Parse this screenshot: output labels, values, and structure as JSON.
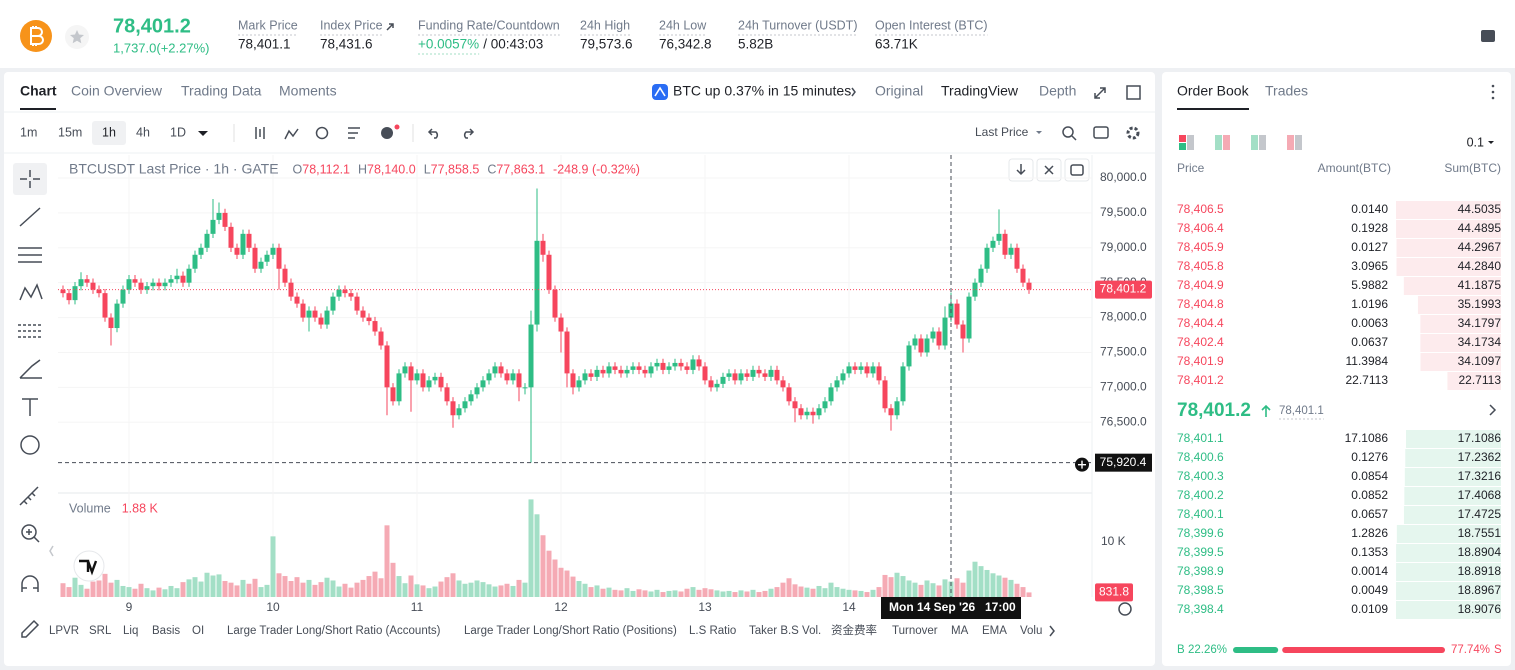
{
  "header": {
    "price": "78,401.2",
    "change": "1,737.0(+2.27%)",
    "stats": [
      {
        "label": "Mark Price",
        "value": "78,401.1"
      },
      {
        "label": "Index Price",
        "value": "78,431.6"
      },
      {
        "label": "Funding Rate/Countdown",
        "value": "+0.0057%",
        "extra": "/ 00:43:03"
      },
      {
        "label": "24h High",
        "value": "79,573.6"
      },
      {
        "label": "24h Low",
        "value": "76,342.8"
      },
      {
        "label": "24h Turnover (USDT)",
        "value": "5.82B"
      },
      {
        "label": "Open Interest (BTC)",
        "value": "63.71K"
      }
    ]
  },
  "tabs": [
    "Chart",
    "Coin Overview",
    "Trading Data",
    "Moments"
  ],
  "alert": "BTC up 0.37% in 15 minutes",
  "views": [
    "Original",
    "TradingView",
    "Depth"
  ],
  "intervals": [
    "1m",
    "15m",
    "1h",
    "4h",
    "1D"
  ],
  "price_type": "Last Price",
  "chart_data": {
    "type": "candlestick",
    "title": "BTCUSDT Last Price · 1h · GATE",
    "legend": [
      {
        "key": "O",
        "value": "78,112.1"
      },
      {
        "key": "H",
        "value": "78,140.0"
      },
      {
        "key": "L",
        "value": "77,858.5"
      },
      {
        "key": "C",
        "value": "77,863.1"
      }
    ],
    "legend_change": "-248.9 (-0.32%)",
    "up_color": "#2ebd85",
    "down_color": "#f6465d",
    "volume_up_color": "#a3dfc6",
    "volume_down_color": "#f5aab4",
    "ylim": [
      75500,
      80330
    ],
    "yticks": [
      {
        "value": 76500,
        "label": "76,500.0"
      },
      {
        "value": 77000,
        "label": "77,000.0"
      },
      {
        "value": 77500,
        "label": "77,500.0"
      },
      {
        "value": 78000,
        "label": "78,000.0"
      },
      {
        "value": 78500,
        "label": "78,500.0"
      },
      {
        "value": 79000,
        "label": "79,000.0"
      },
      {
        "value": 79500,
        "label": "79,500.0"
      },
      {
        "value": 80000,
        "label": "80,000.0"
      }
    ],
    "xticks": [
      {
        "value": 11,
        "label": "9"
      },
      {
        "value": 35,
        "label": "10"
      },
      {
        "value": 59,
        "label": "11"
      },
      {
        "value": 83,
        "label": "12"
      },
      {
        "value": 107,
        "label": "13"
      },
      {
        "value": 131,
        "label": "14"
      }
    ],
    "candles": [
      [
        78400,
        78460,
        78290,
        78350
      ],
      [
        78350,
        78410,
        78190,
        78250
      ],
      [
        78250,
        78510,
        78190,
        78450
      ],
      [
        78450,
        78650,
        78390,
        78550
      ],
      [
        78550,
        78610,
        78440,
        78500
      ],
      [
        78500,
        78560,
        78340,
        78400
      ],
      [
        78400,
        78460,
        78290,
        78350
      ],
      [
        78350,
        78410,
        77940,
        78000
      ],
      [
        78000,
        78060,
        77600,
        77850
      ],
      [
        77850,
        78260,
        77790,
        78200
      ],
      [
        78200,
        78460,
        78140,
        78400
      ],
      [
        78400,
        78610,
        78340,
        78550
      ],
      [
        78550,
        78610,
        78440,
        78500
      ],
      [
        78500,
        78560,
        78340,
        78400
      ],
      [
        78400,
        78510,
        78340,
        78450
      ],
      [
        78450,
        78560,
        78390,
        78500
      ],
      [
        78500,
        78560,
        78390,
        78450
      ],
      [
        78450,
        78560,
        78390,
        78500
      ],
      [
        78500,
        78610,
        78440,
        78550
      ],
      [
        78550,
        78700,
        78490,
        78600
      ],
      [
        78600,
        78660,
        78440,
        78500
      ],
      [
        78500,
        78760,
        78440,
        78700
      ],
      [
        78700,
        78960,
        78640,
        78900
      ],
      [
        78900,
        79060,
        78840,
        79000
      ],
      [
        79000,
        79260,
        78940,
        79200
      ],
      [
        79200,
        79700,
        79140,
        79400
      ],
      [
        79400,
        79650,
        79340,
        79500
      ],
      [
        79500,
        79560,
        79240,
        79300
      ],
      [
        79300,
        79360,
        78940,
        79000
      ],
      [
        79000,
        79060,
        78840,
        78900
      ],
      [
        78900,
        79260,
        78840,
        79200
      ],
      [
        79200,
        79260,
        78940,
        79000
      ],
      [
        79000,
        79060,
        78640,
        78700
      ],
      [
        78700,
        78860,
        78640,
        78800
      ],
      [
        78800,
        78960,
        78740,
        78900
      ],
      [
        78900,
        79060,
        78840,
        79000
      ],
      [
        79000,
        79060,
        78400,
        78700
      ],
      [
        78700,
        78760,
        78440,
        78500
      ],
      [
        78500,
        78560,
        78240,
        78300
      ],
      [
        78300,
        78360,
        78140,
        78200
      ],
      [
        78200,
        78260,
        77940,
        78000
      ],
      [
        78000,
        78160,
        77800,
        78100
      ],
      [
        78100,
        78160,
        77940,
        78000
      ],
      [
        78000,
        78060,
        77840,
        77900
      ],
      [
        77900,
        78160,
        77840,
        78100
      ],
      [
        78100,
        78360,
        78040,
        78300
      ],
      [
        78300,
        78460,
        78240,
        78400
      ],
      [
        78400,
        78460,
        78290,
        78350
      ],
      [
        78350,
        78410,
        78240,
        78300
      ],
      [
        78300,
        78360,
        78040,
        78100
      ],
      [
        78100,
        78160,
        77940,
        78000
      ],
      [
        78000,
        78060,
        77890,
        77950
      ],
      [
        77950,
        78010,
        77740,
        77800
      ],
      [
        77800,
        77860,
        77540,
        77600
      ],
      [
        77600,
        77660,
        76600,
        77000
      ],
      [
        77000,
        77060,
        76740,
        76800
      ],
      [
        76800,
        77260,
        76740,
        77200
      ],
      [
        77200,
        77360,
        77140,
        77300
      ],
      [
        77300,
        77360,
        76650,
        77100
      ],
      [
        77100,
        77260,
        77040,
        77200
      ],
      [
        77200,
        77260,
        76940,
        77000
      ],
      [
        77000,
        77160,
        76940,
        77100
      ],
      [
        77100,
        77210,
        77040,
        77150
      ],
      [
        77150,
        77210,
        76940,
        77000
      ],
      [
        77000,
        77060,
        76740,
        76800
      ],
      [
        76800,
        76860,
        76420,
        76600
      ],
      [
        76600,
        76760,
        76540,
        76700
      ],
      [
        76700,
        76860,
        76640,
        76800
      ],
      [
        76800,
        76960,
        76740,
        76900
      ],
      [
        76900,
        77060,
        76840,
        77000
      ],
      [
        77000,
        77160,
        76940,
        77100
      ],
      [
        77100,
        77260,
        77040,
        77200
      ],
      [
        77200,
        77360,
        77140,
        77300
      ],
      [
        77300,
        77360,
        77140,
        77200
      ],
      [
        77200,
        77260,
        77040,
        77100
      ],
      [
        77100,
        77260,
        77040,
        77200
      ],
      [
        77200,
        77260,
        76800,
        77000
      ],
      [
        77000,
        77060,
        76900,
        77000
      ],
      [
        77000,
        78100,
        75920.4,
        77900
      ],
      [
        77900,
        79850,
        77800,
        79100
      ],
      [
        79100,
        79200,
        78800,
        78900
      ],
      [
        78900,
        78960,
        78340,
        78400
      ],
      [
        78400,
        78460,
        77940,
        78000
      ],
      [
        78000,
        78060,
        77500,
        77800
      ],
      [
        77800,
        77860,
        77000,
        77200
      ],
      [
        77200,
        77260,
        76900,
        77000
      ],
      [
        77000,
        77160,
        76940,
        77100
      ],
      [
        77100,
        77260,
        77040,
        77200
      ],
      [
        77200,
        77260,
        77090,
        77150
      ],
      [
        77150,
        77310,
        77090,
        77250
      ],
      [
        77250,
        77310,
        77140,
        77200
      ],
      [
        77200,
        77360,
        77140,
        77300
      ],
      [
        77300,
        77360,
        77190,
        77250
      ],
      [
        77250,
        77310,
        77140,
        77200
      ],
      [
        77200,
        77310,
        77140,
        77250
      ],
      [
        77250,
        77360,
        77190,
        77300
      ],
      [
        77300,
        77360,
        77190,
        77250
      ],
      [
        77250,
        77310,
        77140,
        77200
      ],
      [
        77200,
        77360,
        77140,
        77300
      ],
      [
        77300,
        77410,
        77240,
        77350
      ],
      [
        77350,
        77410,
        77190,
        77250
      ],
      [
        77250,
        77360,
        77190,
        77300
      ],
      [
        77300,
        77410,
        77240,
        77350
      ],
      [
        77350,
        77410,
        77240,
        77300
      ],
      [
        77300,
        77360,
        77190,
        77250
      ],
      [
        77250,
        77460,
        77190,
        77400
      ],
      [
        77400,
        77460,
        77240,
        77300
      ],
      [
        77300,
        77360,
        77040,
        77100
      ],
      [
        77100,
        77160,
        76940,
        77000
      ],
      [
        77000,
        77110,
        76940,
        77050
      ],
      [
        77050,
        77210,
        76990,
        77150
      ],
      [
        77150,
        77260,
        77090,
        77200
      ],
      [
        77200,
        77260,
        77040,
        77100
      ],
      [
        77100,
        77260,
        77040,
        77200
      ],
      [
        77200,
        77260,
        77090,
        77150
      ],
      [
        77150,
        77310,
        77090,
        77250
      ],
      [
        77250,
        77310,
        77140,
        77200
      ],
      [
        77200,
        77260,
        77090,
        77150
      ],
      [
        77150,
        77310,
        77090,
        77250
      ],
      [
        77250,
        77310,
        77040,
        77100
      ],
      [
        77100,
        77160,
        76940,
        77000
      ],
      [
        77000,
        77060,
        76740,
        76800
      ],
      [
        76800,
        76860,
        76500,
        76700
      ],
      [
        76700,
        76760,
        76540,
        76600
      ],
      [
        76600,
        76710,
        76540,
        76650
      ],
      [
        76650,
        76710,
        76480,
        76600
      ],
      [
        76600,
        76760,
        76540,
        76700
      ],
      [
        76700,
        76860,
        76640,
        76800
      ],
      [
        76800,
        77060,
        76740,
        77000
      ],
      [
        77000,
        77160,
        76940,
        77100
      ],
      [
        77100,
        77260,
        77040,
        77200
      ],
      [
        77200,
        77360,
        77140,
        77300
      ],
      [
        77300,
        77360,
        77190,
        77250
      ],
      [
        77250,
        77360,
        77190,
        77300
      ],
      [
        77300,
        77360,
        77140,
        77200
      ],
      [
        77200,
        77360,
        77140,
        77300
      ],
      [
        77300,
        77360,
        77040,
        77100
      ],
      [
        77100,
        77160,
        76640,
        76700
      ],
      [
        76700,
        76760,
        76380,
        76600
      ],
      [
        76600,
        76860,
        76540,
        76800
      ],
      [
        76800,
        77360,
        76740,
        77300
      ],
      [
        77300,
        77660,
        77240,
        77600
      ],
      [
        77600,
        77760,
        77540,
        77700
      ],
      [
        77700,
        77760,
        77440,
        77500
      ],
      [
        77500,
        77760,
        77440,
        77700
      ],
      [
        77700,
        77860,
        77640,
        77800
      ],
      [
        77800,
        77860,
        77540,
        77600
      ],
      [
        77600,
        78160,
        77540,
        78000
      ],
      [
        78000,
        78360,
        77940,
        78200
      ],
      [
        78200,
        78260,
        77840,
        77900
      ],
      [
        77900,
        77960,
        77500,
        77700
      ],
      [
        77700,
        78360,
        77640,
        78300
      ],
      [
        78300,
        78560,
        78240,
        78500
      ],
      [
        78500,
        78760,
        78440,
        78700
      ],
      [
        78700,
        79060,
        78640,
        79000
      ],
      [
        79000,
        79160,
        78940,
        79100
      ],
      [
        79100,
        79550,
        79040,
        79200
      ],
      [
        79200,
        79260,
        78840,
        78900
      ],
      [
        78900,
        79060,
        78840,
        79000
      ],
      [
        79000,
        79060,
        78640,
        78700
      ],
      [
        78700,
        78760,
        78440,
        78500
      ],
      [
        78500,
        78560,
        78340,
        78401.2
      ]
    ],
    "last_price": {
      "value": 78401.2,
      "label": "78,401.2"
    },
    "crosshair": {
      "value": 75920.4,
      "label": "75,920.4",
      "candle": 148,
      "date": "Mon 14 Sep '26",
      "time": "17:00"
    },
    "volume_title": "Volume",
    "volume_legend": "1.88 K",
    "volume_ylim": [
      0,
      18500
    ],
    "volume_yticks": [
      {
        "value": 10000,
        "label": "10 K"
      }
    ],
    "volumes": [
      2500,
      1800,
      3500,
      2200,
      1500,
      2800,
      3000,
      4200,
      2600,
      3100,
      2000,
      1800,
      1500,
      2400,
      1600,
      1200,
      1700,
      1400,
      2000,
      1600,
      2700,
      3200,
      3600,
      2800,
      4400,
      3900,
      4100,
      2900,
      2600,
      2100,
      3100,
      2400,
      3300,
      1800,
      2200,
      11000,
      4300,
      3800,
      2900,
      3600,
      2600,
      3100,
      2200,
      2700,
      3500,
      3000,
      1900,
      2400,
      1700,
      2600,
      3100,
      3800,
      4600,
      3400,
      13000,
      6200,
      3800,
      2500,
      3900,
      2300,
      2100,
      1600,
      1900,
      2800,
      3600,
      4300,
      3000,
      2400,
      2600,
      3000,
      2700,
      2300,
      1900,
      2100,
      2400,
      2000,
      3100,
      2600,
      17700,
      15000,
      11200,
      8400,
      6800,
      5300,
      4800,
      3700,
      2900,
      2400,
      1800,
      2100,
      1500,
      1700,
      1300,
      1200,
      1600,
      1100,
      1400,
      1200,
      1000,
      1300,
      900,
      1100,
      1200,
      1000,
      1500,
      1800,
      1300,
      1600,
      1400,
      1200,
      1000,
      1100,
      900,
      1200,
      1000,
      1300,
      900,
      1100,
      1500,
      1800,
      2600,
      3400,
      2300,
      1900,
      1700,
      1500,
      2000,
      1600,
      2600,
      1800,
      1500,
      1300,
      1200,
      1100,
      900,
      1300,
      1800,
      4000,
      3600,
      4400,
      3800,
      3000,
      2600,
      2200,
      3000,
      2500,
      2100,
      3200,
      2800,
      3400,
      2600,
      4800,
      6400,
      5600,
      4900,
      4300,
      3900,
      3500,
      3100,
      2400,
      1800,
      831.8
    ]
  },
  "indicators": [
    "LPVR",
    "SRL",
    "Liq",
    "Basis",
    "OI",
    "Large Trader Long/Short Ratio (Accounts)",
    "Large Trader Long/Short Ratio (Positions)",
    "L.S Ratio",
    "Taker B.S Vol.",
    "资金费率",
    "Turnover",
    "MA",
    "EMA",
    "Volu"
  ],
  "order_book": {
    "tabs": [
      "Order Book",
      "Trades"
    ],
    "precision": "0.1",
    "columns": [
      "Price",
      "Amount(BTC)",
      "Sum(BTC)"
    ],
    "asks": [
      {
        "price": "78,406.5",
        "amount": "0.0140",
        "sum": 44.5035
      },
      {
        "price": "78,406.4",
        "amount": "0.1928",
        "sum": 44.4895
      },
      {
        "price": "78,405.9",
        "amount": "0.0127",
        "sum": 44.2967
      },
      {
        "price": "78,405.8",
        "amount": "3.0965",
        "sum": {
          "value": 44.284,
          "label": "44.2840"
        }
      },
      {
        "price": "78,404.9",
        "amount": "5.9882",
        "sum": 41.1875
      },
      {
        "price": "78,404.8",
        "amount": "1.0196",
        "sum": 35.1993
      },
      {
        "price": "78,404.4",
        "amount": "0.0063",
        "sum": 34.1797
      },
      {
        "price": "78,402.4",
        "amount": "0.0637",
        "sum": 34.1734
      },
      {
        "price": "78,401.9",
        "amount": "11.3984",
        "sum": 34.1097
      },
      {
        "price": "78,401.2",
        "amount": "22.7113",
        "sum": 22.7113
      }
    ],
    "mid_price": "78,401.2",
    "mark_price": "78,401.1",
    "bids": [
      {
        "price": "78,401.1",
        "amount": "17.1086",
        "sum": 17.1086
      },
      {
        "price": "78,400.6",
        "amount": "0.1276",
        "sum": 17.2362
      },
      {
        "price": "78,400.3",
        "amount": "0.0854",
        "sum": 17.3216
      },
      {
        "price": "78,400.2",
        "amount": "0.0852",
        "sum": 17.4068
      },
      {
        "price": "78,400.1",
        "amount": "0.0657",
        "sum": 17.4725
      },
      {
        "price": "78,399.6",
        "amount": "1.2826",
        "sum": 18.7551
      },
      {
        "price": "78,399.5",
        "amount": "0.1353",
        "sum": 18.8904
      },
      {
        "price": "78,398.9",
        "amount": "0.0014",
        "sum": 18.8918
      },
      {
        "price": "78,398.5",
        "amount": "0.0049",
        "sum": 18.8967
      },
      {
        "price": "78,398.4",
        "amount": "0.0109",
        "sum": 18.9076
      }
    ],
    "buy_key": "B",
    "buy": {
      "value": 22.26,
      "label": "22.26%"
    },
    "sell": {
      "value": 77.74,
      "label": "77.74%"
    },
    "sell_key": "S"
  }
}
